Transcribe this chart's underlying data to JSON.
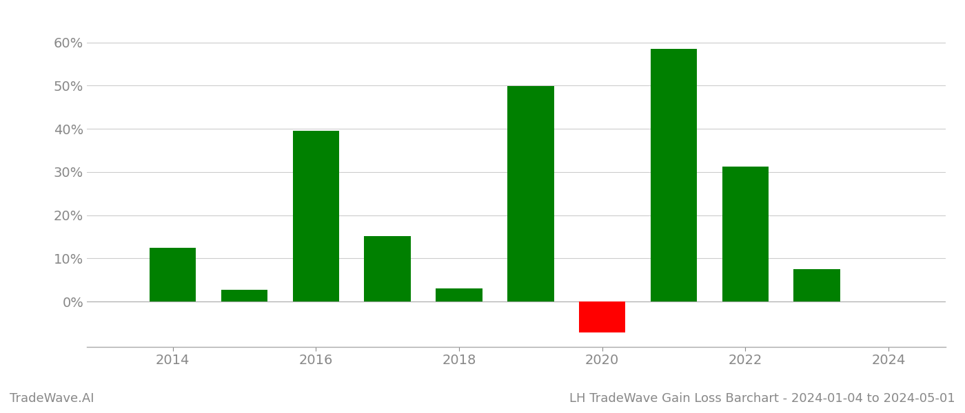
{
  "years": [
    2014,
    2015,
    2016,
    2017,
    2018,
    2019,
    2020,
    2021,
    2022,
    2023
  ],
  "values": [
    0.125,
    0.027,
    0.395,
    0.152,
    0.03,
    0.499,
    -0.072,
    0.585,
    0.312,
    0.075
  ],
  "bar_colors": [
    "#008000",
    "#008000",
    "#008000",
    "#008000",
    "#008000",
    "#008000",
    "#ff0000",
    "#008000",
    "#008000",
    "#008000"
  ],
  "background_color": "#ffffff",
  "grid_color": "#cccccc",
  "ylim_min": -0.105,
  "ylim_max": 0.66,
  "bar_width": 0.65,
  "title_right": "LH TradeWave Gain Loss Barchart - 2024-01-04 to 2024-05-01",
  "title_left": "TradeWave.AI",
  "title_fontsize": 13,
  "tick_fontsize": 14,
  "tick_color": "#888888",
  "spine_color": "#aaaaaa"
}
